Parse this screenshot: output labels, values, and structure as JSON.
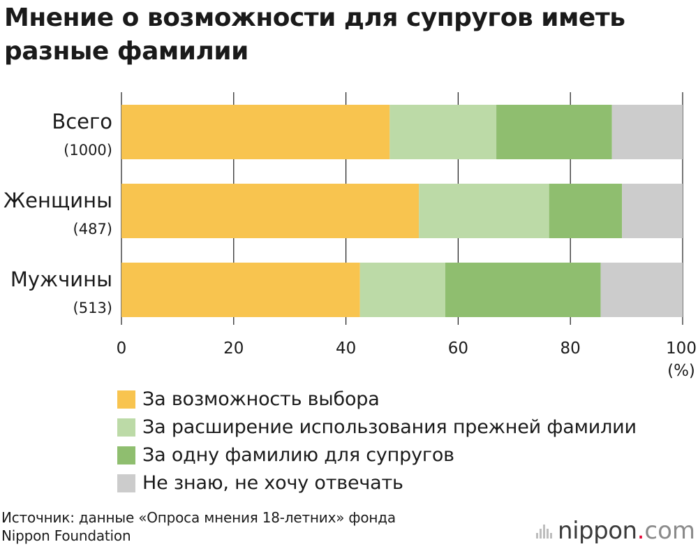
{
  "title": "Мнение о возможности для супругов иметь разные фамилии",
  "chart_data": {
    "type": "bar",
    "orientation": "horizontal",
    "stacked": true,
    "categories": [
      {
        "label": "Всего",
        "sub": "(1000)"
      },
      {
        "label": "Женщины",
        "sub": "(487)"
      },
      {
        "label": "Мужчины",
        "sub": "(513)"
      }
    ],
    "series": [
      {
        "name": "За возможность выбора",
        "color": "#f8c44f",
        "values": [
          47.8,
          53.0,
          42.5
        ]
      },
      {
        "name": "За расширение использования прежней фамилии",
        "color": "#bcdaa7",
        "values": [
          19.0,
          23.2,
          15.2
        ]
      },
      {
        "name": "За одну фамилию для супругов",
        "color": "#8fbe6f",
        "values": [
          20.6,
          13.0,
          27.7
        ]
      },
      {
        "name": "Не знаю, не хочу отвечать",
        "color": "#cccccc",
        "values": [
          12.6,
          10.8,
          14.6
        ]
      }
    ],
    "xlim": [
      0,
      100
    ],
    "xticks": [
      "0",
      "20",
      "40",
      "60",
      "80",
      "100"
    ],
    "xunit": "(%)",
    "grid": true,
    "legend_position": "bottom"
  },
  "legend": [
    {
      "label": "За возможность выбора",
      "color": "#f8c44f"
    },
    {
      "label": "За расширение использования прежней фамилии",
      "color": "#bcdaa7"
    },
    {
      "label": "За одну фамилию для супругов",
      "color": "#8fbe6f"
    },
    {
      "label": "Не знаю, не хочу отвечать",
      "color": "#cccccc"
    }
  ],
  "source": {
    "line1": "Источник: данные «Опроса мнения 18-летних» фонда",
    "line2": "Nippon Foundation"
  },
  "logo": {
    "brand": "nippon",
    "dot": ".",
    "domain": "com"
  }
}
